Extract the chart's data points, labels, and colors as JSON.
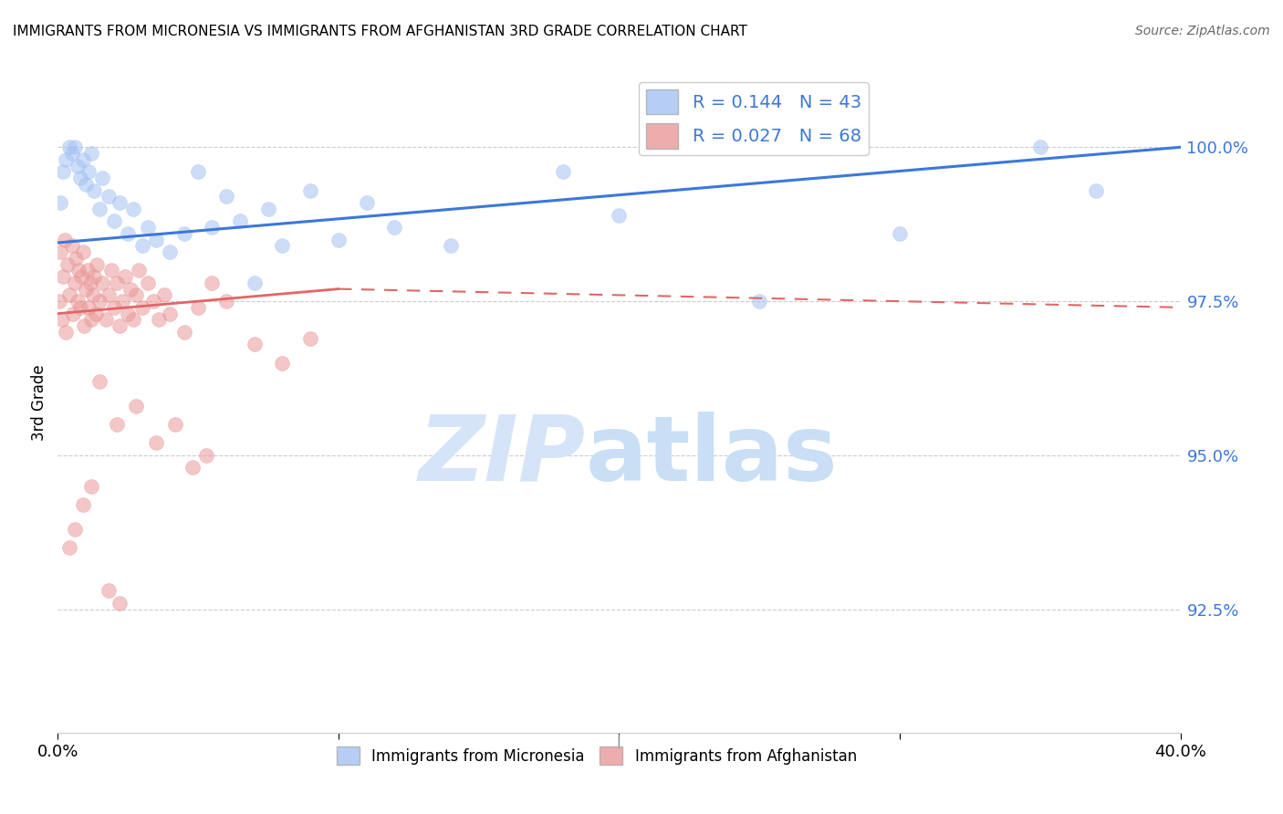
{
  "title": "IMMIGRANTS FROM MICRONESIA VS IMMIGRANTS FROM AFGHANISTAN 3RD GRADE CORRELATION CHART",
  "source": "Source: ZipAtlas.com",
  "ylabel": "3rd Grade",
  "right_yticks": [
    92.5,
    95.0,
    97.5,
    100.0
  ],
  "right_ytick_labels": [
    "92.5%",
    "95.0%",
    "97.5%",
    "100.0%"
  ],
  "legend_blue_r": "R = 0.144",
  "legend_blue_n": "N = 43",
  "legend_pink_r": "R = 0.027",
  "legend_pink_n": "N = 68",
  "blue_color": "#a4c2f4",
  "pink_color": "#ea9999",
  "trend_blue_color": "#3c78d8",
  "trend_pink_color": "#e06666",
  "watermark_zip": "ZIP",
  "watermark_atlas": "atlas",
  "watermark_color": "#d6e4f7",
  "blue_scatter_x": [
    0.1,
    0.2,
    0.3,
    0.4,
    0.5,
    0.6,
    0.7,
    0.8,
    0.9,
    1.0,
    1.1,
    1.2,
    1.3,
    1.5,
    1.6,
    1.8,
    2.0,
    2.2,
    2.5,
    2.7,
    3.0,
    3.2,
    3.5,
    4.0,
    4.5,
    5.0,
    5.5,
    6.0,
    6.5,
    7.0,
    7.5,
    8.0,
    9.0,
    10.0,
    11.0,
    12.0,
    14.0,
    18.0,
    20.0,
    25.0,
    30.0,
    35.0,
    37.0
  ],
  "blue_scatter_y": [
    99.1,
    99.6,
    99.8,
    100.0,
    99.9,
    100.0,
    99.7,
    99.5,
    99.8,
    99.4,
    99.6,
    99.9,
    99.3,
    99.0,
    99.5,
    99.2,
    98.8,
    99.1,
    98.6,
    99.0,
    98.4,
    98.7,
    98.5,
    98.3,
    98.6,
    99.6,
    98.7,
    99.2,
    98.8,
    97.8,
    99.0,
    98.4,
    99.3,
    98.5,
    99.1,
    98.7,
    98.4,
    99.6,
    98.9,
    97.5,
    98.6,
    100.0,
    99.3
  ],
  "pink_scatter_x": [
    0.05,
    0.1,
    0.15,
    0.2,
    0.25,
    0.3,
    0.35,
    0.4,
    0.5,
    0.55,
    0.6,
    0.65,
    0.7,
    0.75,
    0.8,
    0.85,
    0.9,
    0.95,
    1.0,
    1.05,
    1.1,
    1.15,
    1.2,
    1.25,
    1.3,
    1.35,
    1.4,
    1.5,
    1.6,
    1.7,
    1.8,
    1.9,
    2.0,
    2.1,
    2.2,
    2.3,
    2.4,
    2.5,
    2.6,
    2.7,
    2.8,
    2.9,
    3.0,
    3.2,
    3.4,
    3.6,
    3.8,
    4.0,
    4.5,
    5.0,
    5.5,
    6.0,
    7.0,
    8.0,
    9.0,
    2.1,
    1.5,
    2.8,
    3.5,
    4.2,
    4.8,
    5.3,
    1.2,
    0.9,
    0.6,
    0.4,
    2.2,
    1.8
  ],
  "pink_scatter_y": [
    97.5,
    98.3,
    97.2,
    97.9,
    98.5,
    97.0,
    98.1,
    97.6,
    98.4,
    97.3,
    97.8,
    98.2,
    97.5,
    98.0,
    97.4,
    97.9,
    98.3,
    97.1,
    97.7,
    98.0,
    97.4,
    97.8,
    97.2,
    97.6,
    97.9,
    97.3,
    98.1,
    97.5,
    97.8,
    97.2,
    97.6,
    98.0,
    97.4,
    97.8,
    97.1,
    97.5,
    97.9,
    97.3,
    97.7,
    97.2,
    97.6,
    98.0,
    97.4,
    97.8,
    97.5,
    97.2,
    97.6,
    97.3,
    97.0,
    97.4,
    97.8,
    97.5,
    96.8,
    96.5,
    96.9,
    95.5,
    96.2,
    95.8,
    95.2,
    95.5,
    94.8,
    95.0,
    94.5,
    94.2,
    93.8,
    93.5,
    92.6,
    92.8
  ],
  "xlim": [
    0.0,
    40.0
  ],
  "ylim": [
    90.5,
    101.2
  ],
  "blue_trend_x0": 0.0,
  "blue_trend_x1": 40.0,
  "blue_trend_y0": 98.45,
  "blue_trend_y1": 100.0,
  "pink_trend_solid_x0": 0.0,
  "pink_trend_solid_x1": 10.0,
  "pink_trend_solid_y0": 97.3,
  "pink_trend_solid_y1": 97.7,
  "pink_trend_dash_x0": 10.0,
  "pink_trend_dash_x1": 40.0,
  "pink_trend_dash_y0": 97.7,
  "pink_trend_dash_y1": 97.4
}
